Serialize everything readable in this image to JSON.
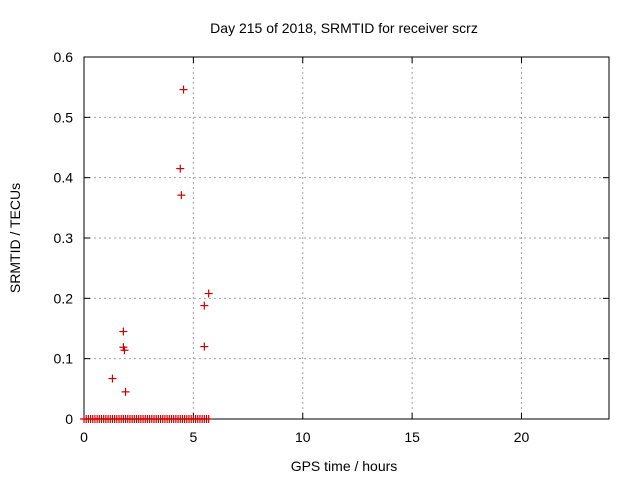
{
  "chart_data": {
    "type": "scatter",
    "title": "Day 215 of 2018, SRMTID for receiver scrz",
    "xlabel": "GPS time / hours",
    "ylabel": "SRMTID / TECUs",
    "xlim": [
      0,
      24
    ],
    "ylim": [
      0,
      0.6
    ],
    "xticks": [
      0,
      5,
      10,
      15,
      20
    ],
    "xtick_labels": [
      "0",
      "5",
      "10",
      "15",
      "20"
    ],
    "yticks": [
      0,
      0.1,
      0.2,
      0.3,
      0.4,
      0.5,
      0.6
    ],
    "ytick_labels": [
      "0",
      "0.1",
      "0.2",
      "0.3",
      "0.4",
      "0.5",
      "0.6"
    ],
    "grid": true,
    "marker": "+",
    "color": "#cc0000",
    "series": [
      {
        "name": "SRMTID",
        "points": [
          {
            "x": 1.3,
            "y": 0.067
          },
          {
            "x": 1.8,
            "y": 0.145
          },
          {
            "x": 1.8,
            "y": 0.119
          },
          {
            "x": 1.85,
            "y": 0.114
          },
          {
            "x": 1.9,
            "y": 0.045
          },
          {
            "x": 4.4,
            "y": 0.415
          },
          {
            "x": 4.45,
            "y": 0.371
          },
          {
            "x": 4.55,
            "y": 0.546
          },
          {
            "x": 5.5,
            "y": 0.188
          },
          {
            "x": 5.5,
            "y": 0.12
          },
          {
            "x": 5.7,
            "y": 0.208
          }
        ],
        "zero_run": {
          "x_start": 0.0,
          "x_end": 5.75,
          "step": 0.1,
          "y": 0
        }
      }
    ]
  }
}
